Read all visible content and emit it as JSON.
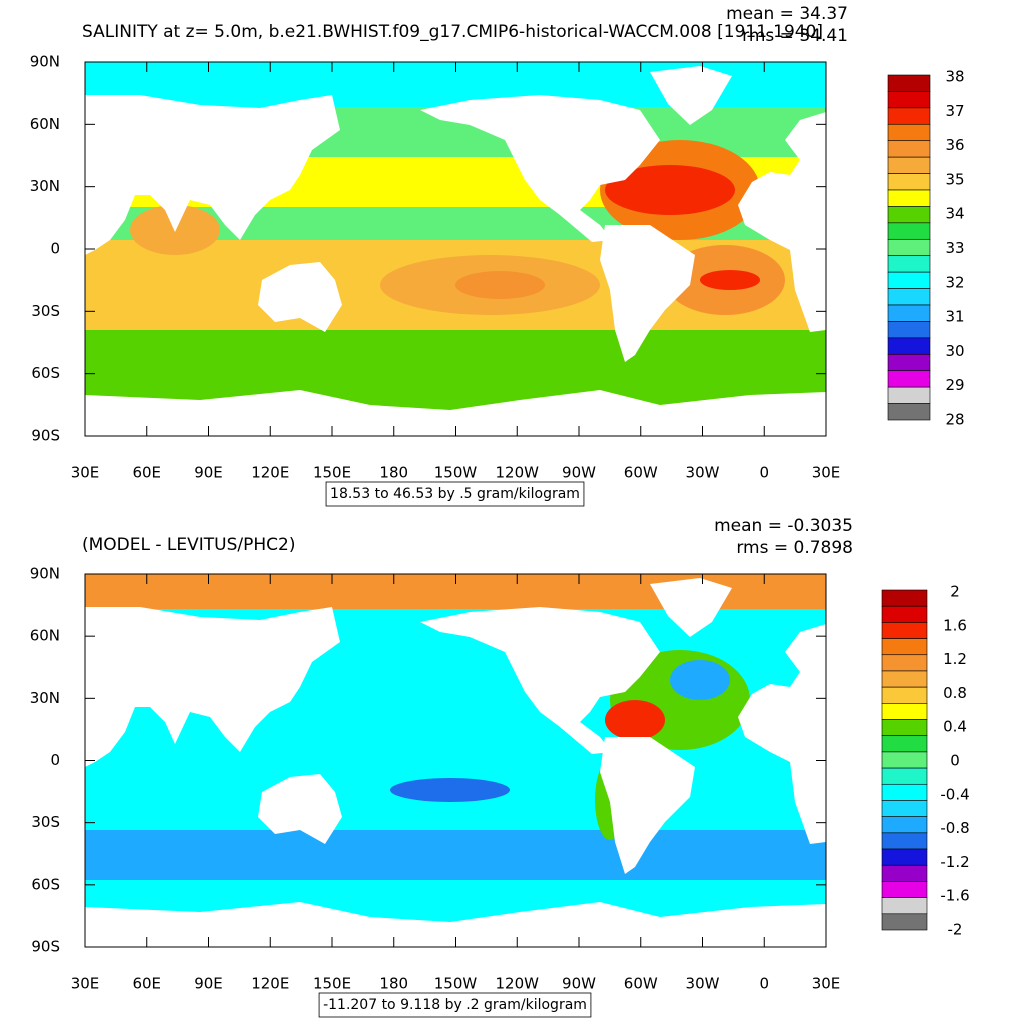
{
  "panels": [
    {
      "title": "SALINITY at z=   5.0m, b.e21.BWHIST.f09_g17.CMIP6-historical-WACCM.008 [1911-1940]",
      "stats": [
        "mean = 34.37",
        "rms = 34.41"
      ],
      "lat_labels": [
        "90N",
        "60N",
        "30N",
        "0",
        "30S",
        "60S",
        "90S"
      ],
      "lon_labels": [
        "30E",
        "60E",
        "90E",
        "120E",
        "150E",
        "180",
        "150W",
        "120W",
        "90W",
        "60W",
        "30W",
        "0",
        "30E"
      ],
      "colorbar": {
        "labels": [
          "38",
          "37",
          "36",
          "35",
          "34",
          "33",
          "32",
          "31",
          "30",
          "29",
          "28"
        ]
      },
      "contour_info": "18.53 to 46.53 by .5 gram/kilogram"
    },
    {
      "title": "(MODEL - LEVITUS/PHC2)",
      "stats": [
        "mean = -0.3035",
        "rms = 0.7898"
      ],
      "lat_labels": [
        "90N",
        "60N",
        "30N",
        "0",
        "30S",
        "60S",
        "90S"
      ],
      "lon_labels": [
        "30E",
        "60E",
        "90E",
        "120E",
        "150E",
        "180",
        "150W",
        "120W",
        "90W",
        "60W",
        "30W",
        "0",
        "30E"
      ],
      "colorbar": {
        "labels": [
          "2",
          "1.6",
          "1.2",
          "0.8",
          "0.4",
          "0",
          "-0.4",
          "-0.8",
          "-1.2",
          "-1.6",
          "-2"
        ]
      },
      "contour_info": "-11.207 to 9.118 by .2 gram/kilogram"
    }
  ],
  "colorbar_colors": [
    "#b40000",
    "#dc0000",
    "#f52800",
    "#f57a10",
    "#f59330",
    "#f6aa3a",
    "#fbc83a",
    "#ffff00",
    "#55d200",
    "#22dc44",
    "#5ef07a",
    "#1ef5c8",
    "#00ffff",
    "#18d8ff",
    "#1eaaff",
    "#1e6eeb",
    "#1414dc",
    "#9600c8",
    "#e600e6",
    "#d2d2d2",
    "#737373"
  ]
}
